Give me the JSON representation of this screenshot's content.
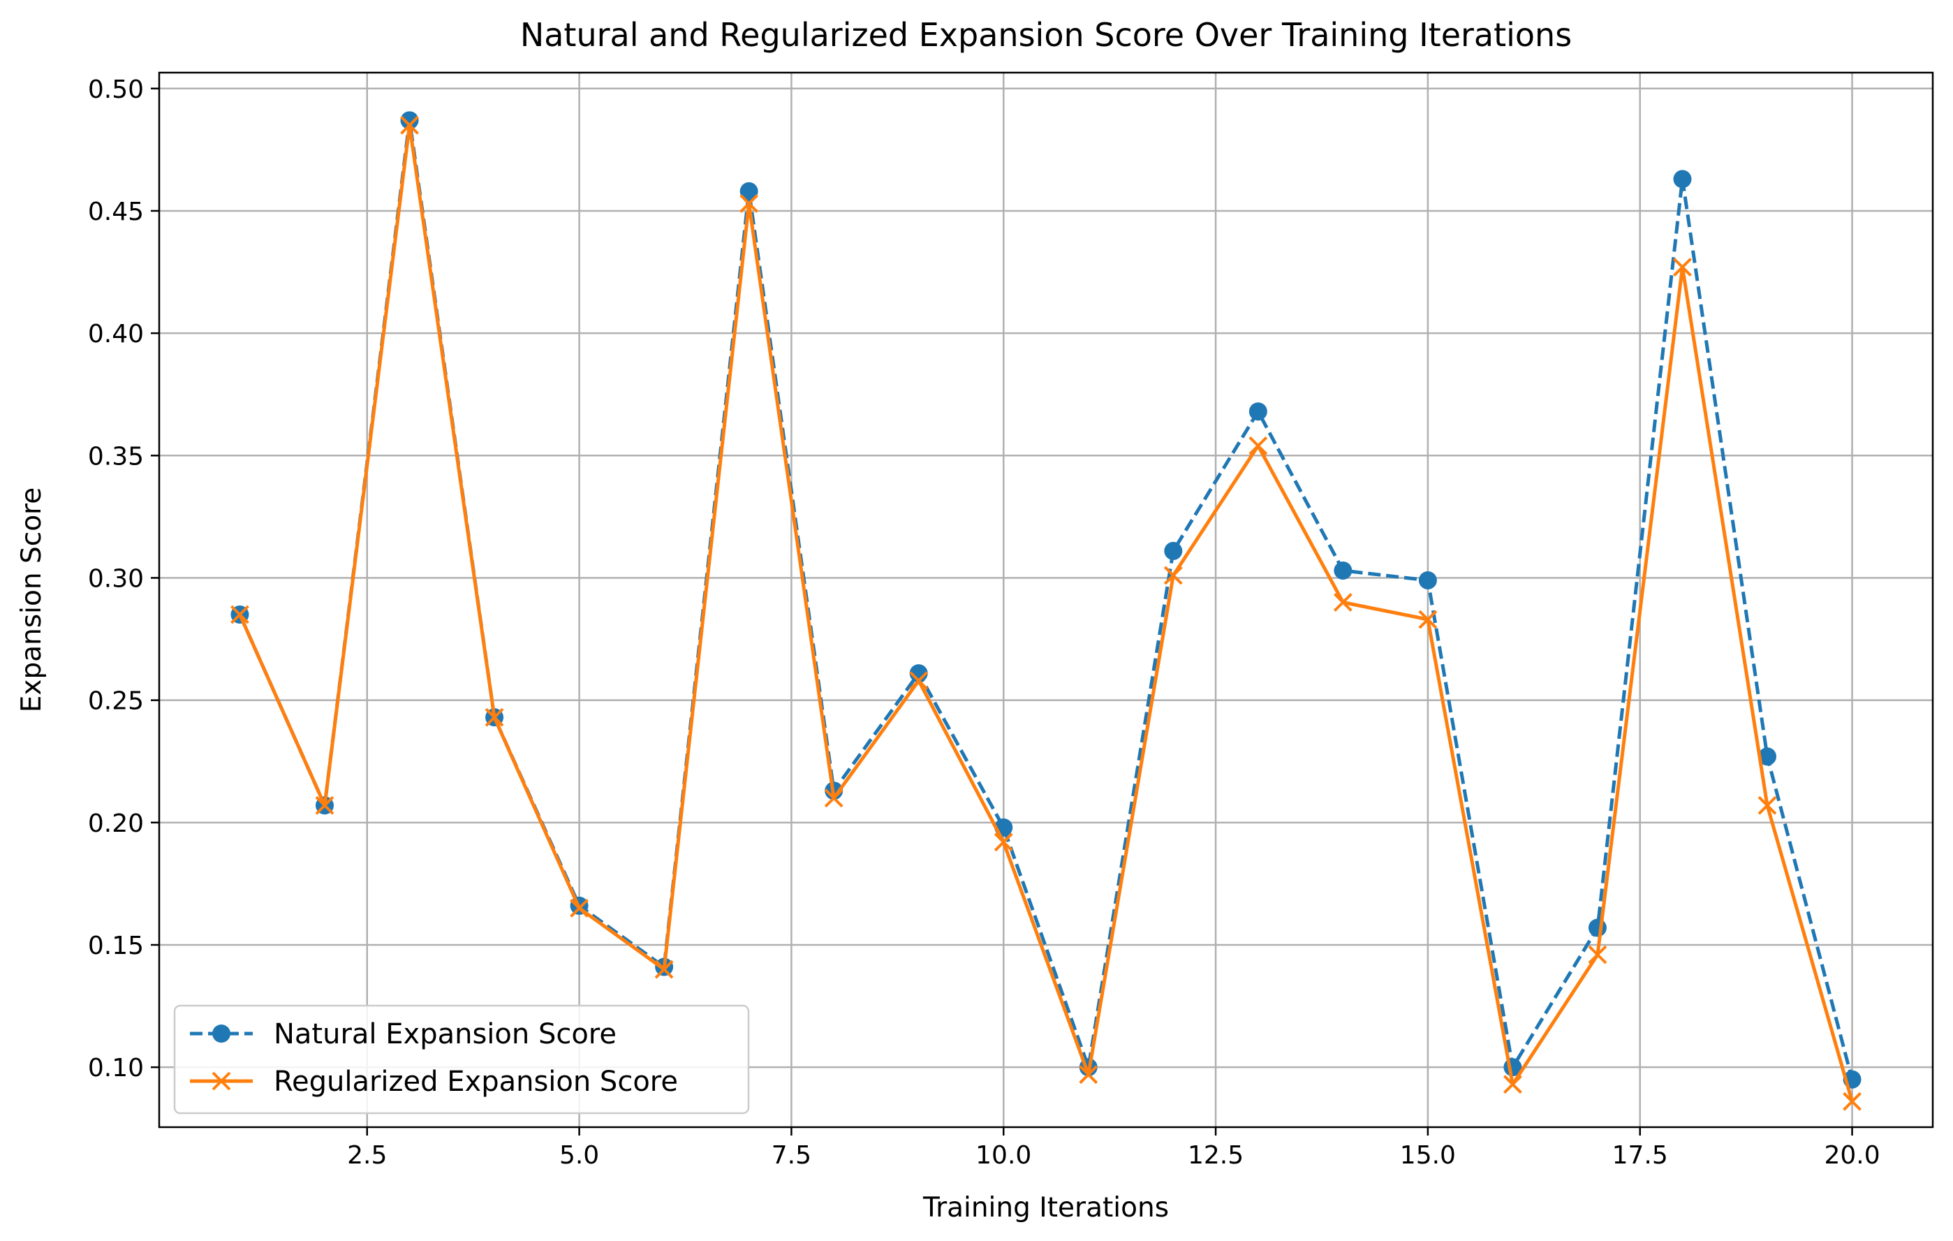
{
  "chart_data": {
    "type": "line",
    "title": "Natural and Regularized Expansion Score Over Training Iterations",
    "xlabel": "Training Iterations",
    "ylabel": "Expansion Score",
    "xlim": [
      0.05,
      20.95
    ],
    "ylim": [
      0.0755,
      0.5065
    ],
    "xticks": [
      2.5,
      5.0,
      7.5,
      10.0,
      12.5,
      15.0,
      17.5,
      20.0
    ],
    "xtick_labels": [
      "2.5",
      "5.0",
      "7.5",
      "10.0",
      "12.5",
      "15.0",
      "17.5",
      "20.0"
    ],
    "yticks": [
      0.1,
      0.15,
      0.2,
      0.25,
      0.3,
      0.35,
      0.4,
      0.45,
      0.5
    ],
    "ytick_labels": [
      "0.10",
      "0.15",
      "0.20",
      "0.25",
      "0.30",
      "0.35",
      "0.40",
      "0.45",
      "0.50"
    ],
    "grid": true,
    "legend_position": "lower-left",
    "x": [
      1,
      2,
      3,
      4,
      5,
      6,
      7,
      8,
      9,
      10,
      11,
      12,
      13,
      14,
      15,
      16,
      17,
      18,
      19,
      20
    ],
    "series": [
      {
        "name": "Natural Expansion Score",
        "color": "#1f77b4",
        "line_style": "dashed",
        "marker": "circle",
        "values": [
          0.285,
          0.207,
          0.487,
          0.243,
          0.166,
          0.141,
          0.458,
          0.213,
          0.261,
          0.198,
          0.1,
          0.311,
          0.368,
          0.303,
          0.299,
          0.1,
          0.157,
          0.463,
          0.227,
          0.095
        ]
      },
      {
        "name": "Regularized Expansion Score",
        "color": "#ff7f0e",
        "line_style": "solid",
        "marker": "x",
        "values": [
          0.285,
          0.207,
          0.485,
          0.243,
          0.165,
          0.14,
          0.453,
          0.21,
          0.258,
          0.192,
          0.097,
          0.301,
          0.354,
          0.29,
          0.283,
          0.093,
          0.146,
          0.427,
          0.207,
          0.086
        ]
      }
    ]
  }
}
